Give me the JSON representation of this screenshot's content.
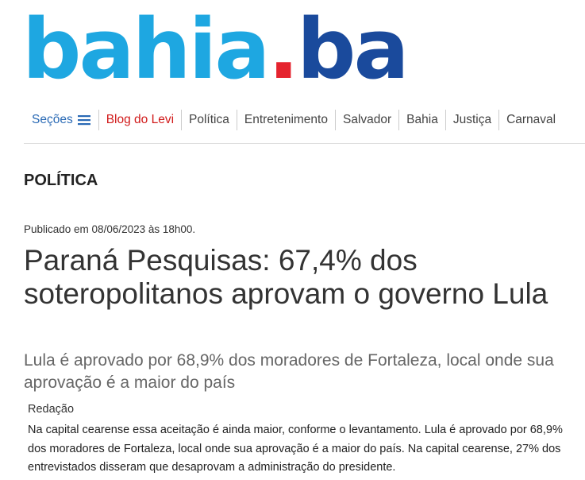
{
  "logo": {
    "part1": "bahia",
    "dot": ".",
    "part2": "ba"
  },
  "nav": {
    "sections": "Seções",
    "items": [
      "Blog do Levi",
      "Política",
      "Entretenimento",
      "Salvador",
      "Bahia",
      "Justiça",
      "Carnaval"
    ]
  },
  "section": "POLÍTICA",
  "article": {
    "published": "Publicado em 08/06/2023 às 18h00.",
    "title": "Paraná Pesquisas: 67,4% dos soteropolitanos aprovam o governo Lula",
    "subtitle": "Lula é aprovado por 68,9% dos moradores de Fortaleza, local onde sua aprovação é a maior do país",
    "author": "Redação",
    "body": "Na capital cearense essa aceitação é ainda maior, conforme o levantamento. Lula é aprovado por 68,9% dos moradores de Fortaleza, local onde sua aprovação é a maior do país. Na capital cearense, 27% dos entrevistados disseram que desaprovam a administração do presidente."
  }
}
